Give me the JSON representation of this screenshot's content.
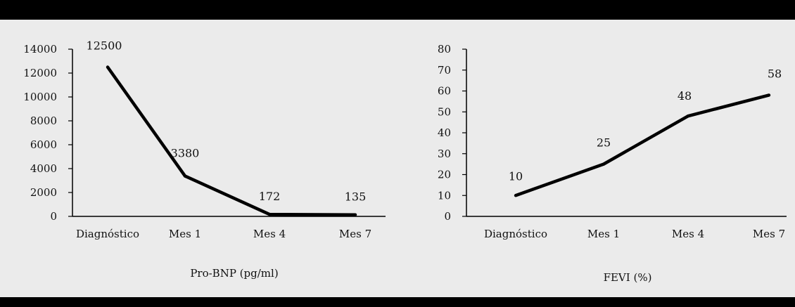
{
  "chart_data": [
    {
      "type": "line",
      "xlabel": "Pro-BNP (pg/ml)",
      "ylabel": "",
      "categories": [
        "Diagnóstico",
        "Mes 1",
        "Mes 4",
        "Mes 7"
      ],
      "series": [
        {
          "values": [
            12500,
            3380,
            172,
            135
          ]
        }
      ],
      "data_labels": [
        "12500",
        "3380",
        "172",
        "135"
      ],
      "y_ticks": [
        0,
        2000,
        4000,
        6000,
        8000,
        10000,
        12000,
        14000
      ],
      "ylim": [
        0,
        14000
      ],
      "grid": false,
      "line_color": "#000000"
    },
    {
      "type": "line",
      "xlabel": "FEVI (%)",
      "ylabel": "",
      "categories": [
        "Diagnóstico",
        "Mes 1",
        "Mes 4",
        "Mes 7"
      ],
      "series": [
        {
          "values": [
            10,
            25,
            48,
            58
          ]
        }
      ],
      "data_labels": [
        "10",
        "25",
        "48",
        "58"
      ],
      "y_ticks": [
        0,
        10,
        20,
        30,
        40,
        50,
        60,
        70,
        80
      ],
      "ylim": [
        0,
        80
      ],
      "grid": false,
      "line_color": "#000000"
    }
  ]
}
